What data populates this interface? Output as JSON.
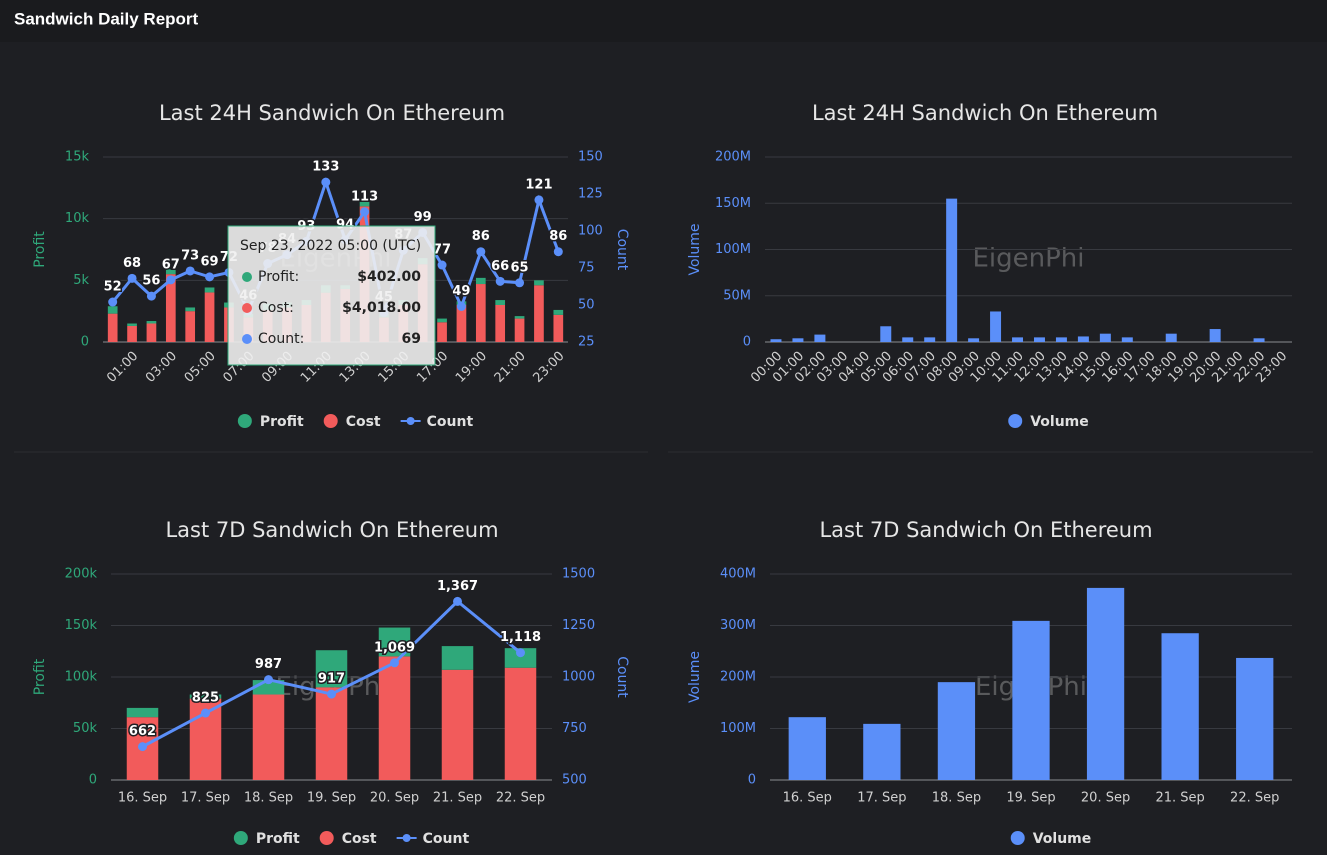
{
  "header": {
    "title": "Sandwich Daily Report"
  },
  "chart_data": [
    {
      "type": "combo",
      "title": "Last 24H Sandwich On Ethereum",
      "categories": [
        null,
        "01:00",
        null,
        "03:00",
        null,
        "05:00",
        null,
        "07:00",
        null,
        "09:00",
        null,
        "11:00",
        null,
        "13:00",
        null,
        "15:00",
        null,
        "17:00",
        null,
        "19:00",
        null,
        "21:00",
        null,
        "23:00"
      ],
      "series": [
        {
          "name": "Profit",
          "type": "bar",
          "color": "#2fa87a",
          "values": [
            600,
            200,
            200,
            400,
            300,
            402,
            400,
            300,
            500,
            400,
            400,
            600,
            300,
            500,
            300,
            400,
            500,
            300,
            300,
            500,
            400,
            200,
            400,
            400
          ]
        },
        {
          "name": "Cost",
          "type": "bar",
          "color": "#f25b5b",
          "values": [
            2300,
            1300,
            1500,
            5500,
            2500,
            4018,
            2800,
            2000,
            2600,
            2800,
            3000,
            4000,
            4300,
            11000,
            2000,
            3000,
            6300,
            1600,
            3000,
            4700,
            3000,
            1900,
            4600,
            2200
          ]
        },
        {
          "name": "Count",
          "type": "line",
          "axis": "y2",
          "color": "#5b8ff9",
          "values": [
            52,
            68,
            56,
            67,
            73,
            69,
            72,
            46,
            78,
            84,
            93,
            133,
            94,
            113,
            45,
            87,
            99,
            77,
            49,
            86,
            66,
            65,
            121,
            86
          ]
        }
      ],
      "ylabel": "Profit",
      "y2label": "Count",
      "ylim": [
        0,
        15000
      ],
      "yticks": [
        0,
        {
          "value": 5000,
          "label": "5k"
        },
        {
          "value": 10000,
          "label": "10k"
        },
        {
          "value": 15000,
          "label": "15k"
        }
      ],
      "y2lim": [
        25,
        150
      ],
      "y2ticks": [
        25,
        50,
        75,
        100,
        125,
        150
      ],
      "grid": true,
      "watermark": "EigenPhi",
      "tooltip": {
        "title": "Sep 23, 2022 05:00 (UTC)",
        "rows": [
          {
            "name": "Profit:",
            "value": "$402.00"
          },
          {
            "name": "Cost:",
            "value": "$4,018.00"
          },
          {
            "name": "Count:",
            "value": "69"
          }
        ]
      }
    },
    {
      "type": "bar",
      "title": "Last 24H Sandwich On Ethereum",
      "categories": [
        "00:00",
        "01:00",
        "02:00",
        "03:00",
        "04:00",
        "05:00",
        "06:00",
        "07:00",
        "08:00",
        "09:00",
        "10:00",
        "11:00",
        "12:00",
        "13:00",
        "14:00",
        "15:00",
        "16:00",
        "17:00",
        "18:00",
        "19:00",
        "20:00",
        "21:00",
        "22:00",
        "23:00"
      ],
      "series": [
        {
          "name": "Volume",
          "type": "bar",
          "color": "#5b8ff9",
          "values": [
            3000000,
            4000000,
            8000000,
            0,
            0,
            17000000,
            5000000,
            5000000,
            155000000,
            4000000,
            33000000,
            5000000,
            5000000,
            5000000,
            6000000,
            9000000,
            5000000,
            0,
            9000000,
            0,
            14000000,
            0,
            4000000,
            0
          ]
        }
      ],
      "ylabel": "Volume",
      "ylim": [
        0,
        200000000
      ],
      "yticks": [
        0,
        {
          "value": 50000000,
          "label": "50M"
        },
        {
          "value": 100000000,
          "label": "100M"
        },
        {
          "value": 150000000,
          "label": "150M"
        },
        {
          "value": 200000000,
          "label": "200M"
        }
      ],
      "grid": true,
      "watermark": "EigenPhi"
    },
    {
      "type": "combo",
      "title": "Last 7D Sandwich On Ethereum",
      "categories": [
        "16. Sep",
        "17. Sep",
        "18. Sep",
        "19. Sep",
        "20. Sep",
        "21. Sep",
        "22. Sep"
      ],
      "series": [
        {
          "name": "Profit",
          "type": "bar",
          "color": "#2fa87a",
          "values": [
            9000,
            4000,
            14000,
            36000,
            28000,
            23000,
            19000
          ]
        },
        {
          "name": "Cost",
          "type": "bar",
          "color": "#f25b5b",
          "values": [
            61000,
            79000,
            83000,
            90000,
            120000,
            107000,
            109000
          ]
        },
        {
          "name": "Count",
          "type": "line",
          "axis": "y2",
          "color": "#5b8ff9",
          "values": [
            662,
            825,
            987,
            917,
            1069,
            1367,
            1118
          ],
          "value_labels": [
            "662",
            "825",
            "987",
            "917",
            "1,069",
            "1,367",
            "1,118"
          ]
        }
      ],
      "ylabel": "Profit",
      "y2label": "Count",
      "ylim": [
        0,
        200000
      ],
      "yticks": [
        0,
        {
          "value": 50000,
          "label": "50k"
        },
        {
          "value": 100000,
          "label": "100k"
        },
        {
          "value": 150000,
          "label": "150k"
        },
        {
          "value": 200000,
          "label": "200k"
        }
      ],
      "y2lim": [
        500,
        1500
      ],
      "y2ticks": [
        500,
        750,
        1000,
        1250,
        1500
      ],
      "grid": true,
      "watermark": "EigenPhi"
    },
    {
      "type": "bar",
      "title": "Last 7D Sandwich On Ethereum",
      "categories": [
        "16. Sep",
        "17. Sep",
        "18. Sep",
        "19. Sep",
        "20. Sep",
        "21. Sep",
        "22. Sep"
      ],
      "series": [
        {
          "name": "Volume",
          "type": "bar",
          "color": "#5b8ff9",
          "values": [
            122000000,
            109000000,
            190000000,
            309000000,
            373000000,
            285000000,
            237000000
          ]
        }
      ],
      "ylabel": "Volume",
      "ylim": [
        0,
        400000000
      ],
      "yticks": [
        0,
        {
          "value": 100000000,
          "label": "100M"
        },
        {
          "value": 200000000,
          "label": "200M"
        },
        {
          "value": 300000000,
          "label": "300M"
        },
        {
          "value": 400000000,
          "label": "400M"
        }
      ],
      "grid": true,
      "watermark": "EigenPhi"
    }
  ]
}
